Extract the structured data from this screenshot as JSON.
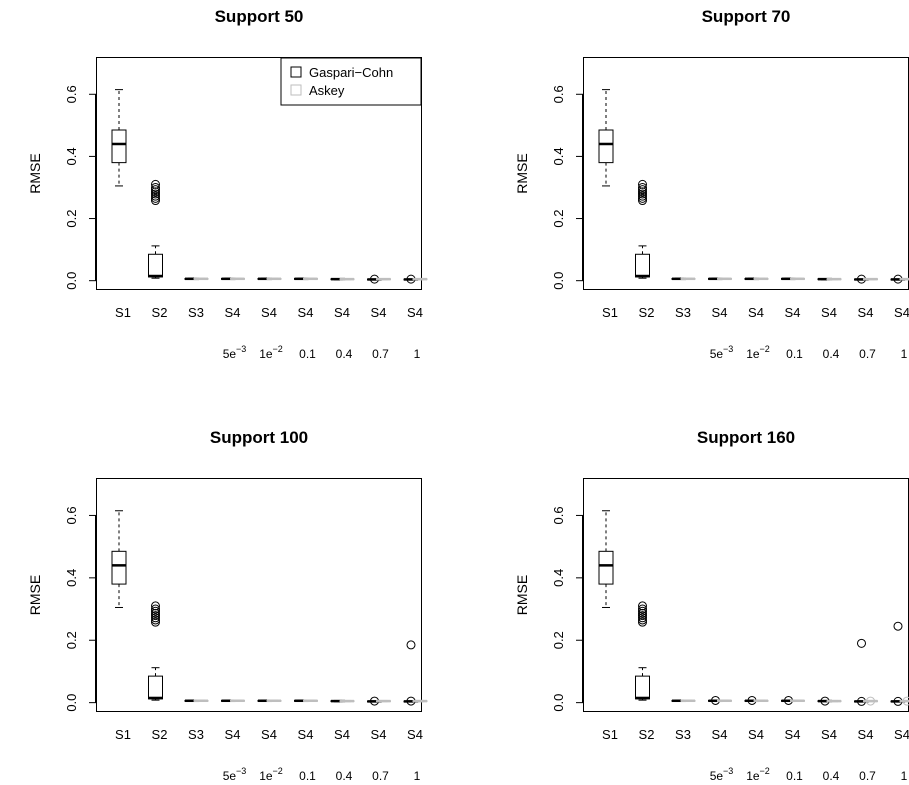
{
  "colors": {
    "gaspari_cohn": "#000000",
    "askey": "#bebebe",
    "background": "#ffffff"
  },
  "chart_data": [
    {
      "type": "boxplot",
      "title": "Support 50",
      "ylabel": "RMSE",
      "xlabel": "",
      "ylim": [
        -0.03,
        0.72
      ],
      "yticks": [
        "0.0",
        "0.2",
        "0.4",
        "0.6"
      ],
      "categories": [
        "S1",
        "S2",
        "S3",
        "S4",
        "S4",
        "S4",
        "S4",
        "S4",
        "S4"
      ],
      "parameter_labels": [
        "",
        "",
        "",
        "5e-3",
        "1e-2",
        "0.1",
        "0.4",
        "0.7",
        "1"
      ],
      "legend": {
        "position": "top-right",
        "entries": [
          "Gaspari−Cohn",
          "Askey"
        ]
      },
      "series": [
        {
          "name": "Gaspari−Cohn",
          "boxes": [
            {
              "min": 0.305,
              "q1": 0.38,
              "median": 0.44,
              "q3": 0.485,
              "max": 0.615,
              "outliers": []
            },
            {
              "min": 0.008,
              "q1": 0.012,
              "median": 0.015,
              "q3": 0.085,
              "max": 0.112,
              "outliers": [
                0.258,
                0.265,
                0.272,
                0.279,
                0.286,
                0.293,
                0.3,
                0.31
              ]
            },
            {
              "min": 0.004,
              "q1": 0.005,
              "median": 0.006,
              "q3": 0.007,
              "max": 0.008,
              "outliers": []
            },
            {
              "min": 0.004,
              "q1": 0.005,
              "median": 0.006,
              "q3": 0.007,
              "max": 0.008,
              "outliers": []
            },
            {
              "min": 0.004,
              "q1": 0.005,
              "median": 0.006,
              "q3": 0.007,
              "max": 0.008,
              "outliers": []
            },
            {
              "min": 0.004,
              "q1": 0.005,
              "median": 0.006,
              "q3": 0.007,
              "max": 0.008,
              "outliers": []
            },
            {
              "min": 0.003,
              "q1": 0.004,
              "median": 0.005,
              "q3": 0.006,
              "max": 0.007,
              "outliers": []
            },
            {
              "min": 0.002,
              "q1": 0.003,
              "median": 0.004,
              "q3": 0.005,
              "max": 0.006,
              "outliers": [
                0.005
              ]
            },
            {
              "min": 0.002,
              "q1": 0.003,
              "median": 0.004,
              "q3": 0.005,
              "max": 0.006,
              "outliers": [
                0.005
              ]
            }
          ]
        },
        {
          "name": "Askey",
          "boxes": [
            null,
            null,
            {
              "min": 0.004,
              "q1": 0.005,
              "median": 0.006,
              "q3": 0.007,
              "max": 0.008,
              "outliers": []
            },
            {
              "min": 0.004,
              "q1": 0.005,
              "median": 0.006,
              "q3": 0.007,
              "max": 0.008,
              "outliers": []
            },
            {
              "min": 0.004,
              "q1": 0.005,
              "median": 0.006,
              "q3": 0.007,
              "max": 0.008,
              "outliers": []
            },
            {
              "min": 0.004,
              "q1": 0.005,
              "median": 0.006,
              "q3": 0.007,
              "max": 0.008,
              "outliers": []
            },
            {
              "min": 0.003,
              "q1": 0.004,
              "median": 0.005,
              "q3": 0.006,
              "max": 0.007,
              "outliers": []
            },
            {
              "min": 0.003,
              "q1": 0.004,
              "median": 0.005,
              "q3": 0.006,
              "max": 0.007,
              "outliers": []
            },
            {
              "min": 0.003,
              "q1": 0.004,
              "median": 0.005,
              "q3": 0.006,
              "max": 0.007,
              "outliers": []
            }
          ]
        }
      ]
    },
    {
      "type": "boxplot",
      "title": "Support 70",
      "ylabel": "RMSE",
      "xlabel": "",
      "ylim": [
        -0.03,
        0.72
      ],
      "yticks": [
        "0.0",
        "0.2",
        "0.4",
        "0.6"
      ],
      "categories": [
        "S1",
        "S2",
        "S3",
        "S4",
        "S4",
        "S4",
        "S4",
        "S4",
        "S4"
      ],
      "parameter_labels": [
        "",
        "",
        "",
        "5e-3",
        "1e-2",
        "0.1",
        "0.4",
        "0.7",
        "1"
      ],
      "series": [
        {
          "name": "Gaspari−Cohn",
          "boxes": [
            {
              "min": 0.305,
              "q1": 0.38,
              "median": 0.44,
              "q3": 0.485,
              "max": 0.615,
              "outliers": []
            },
            {
              "min": 0.008,
              "q1": 0.012,
              "median": 0.015,
              "q3": 0.085,
              "max": 0.112,
              "outliers": [
                0.258,
                0.265,
                0.272,
                0.279,
                0.286,
                0.293,
                0.3,
                0.31
              ]
            },
            {
              "min": 0.004,
              "q1": 0.005,
              "median": 0.006,
              "q3": 0.007,
              "max": 0.008,
              "outliers": []
            },
            {
              "min": 0.004,
              "q1": 0.005,
              "median": 0.006,
              "q3": 0.007,
              "max": 0.008,
              "outliers": []
            },
            {
              "min": 0.004,
              "q1": 0.005,
              "median": 0.006,
              "q3": 0.007,
              "max": 0.008,
              "outliers": []
            },
            {
              "min": 0.004,
              "q1": 0.005,
              "median": 0.006,
              "q3": 0.007,
              "max": 0.008,
              "outliers": []
            },
            {
              "min": 0.003,
              "q1": 0.004,
              "median": 0.005,
              "q3": 0.006,
              "max": 0.007,
              "outliers": []
            },
            {
              "min": 0.002,
              "q1": 0.003,
              "median": 0.004,
              "q3": 0.005,
              "max": 0.006,
              "outliers": [
                0.005
              ]
            },
            {
              "min": 0.002,
              "q1": 0.003,
              "median": 0.004,
              "q3": 0.005,
              "max": 0.006,
              "outliers": [
                0.005
              ]
            }
          ]
        },
        {
          "name": "Askey",
          "boxes": [
            null,
            null,
            {
              "min": 0.004,
              "q1": 0.005,
              "median": 0.006,
              "q3": 0.007,
              "max": 0.008,
              "outliers": []
            },
            {
              "min": 0.004,
              "q1": 0.005,
              "median": 0.006,
              "q3": 0.007,
              "max": 0.008,
              "outliers": []
            },
            {
              "min": 0.004,
              "q1": 0.005,
              "median": 0.006,
              "q3": 0.007,
              "max": 0.008,
              "outliers": []
            },
            {
              "min": 0.004,
              "q1": 0.005,
              "median": 0.006,
              "q3": 0.007,
              "max": 0.008,
              "outliers": []
            },
            {
              "min": 0.003,
              "q1": 0.004,
              "median": 0.005,
              "q3": 0.006,
              "max": 0.007,
              "outliers": []
            },
            {
              "min": 0.003,
              "q1": 0.004,
              "median": 0.005,
              "q3": 0.006,
              "max": 0.007,
              "outliers": []
            },
            {
              "min": 0.003,
              "q1": 0.004,
              "median": 0.005,
              "q3": 0.006,
              "max": 0.007,
              "outliers": []
            }
          ]
        }
      ]
    },
    {
      "type": "boxplot",
      "title": "Support 100",
      "ylabel": "RMSE",
      "xlabel": "",
      "ylim": [
        -0.03,
        0.72
      ],
      "yticks": [
        "0.0",
        "0.2",
        "0.4",
        "0.6"
      ],
      "categories": [
        "S1",
        "S2",
        "S3",
        "S4",
        "S4",
        "S4",
        "S4",
        "S4",
        "S4"
      ],
      "parameter_labels": [
        "",
        "",
        "",
        "5e-3",
        "1e-2",
        "0.1",
        "0.4",
        "0.7",
        "1"
      ],
      "series": [
        {
          "name": "Gaspari−Cohn",
          "boxes": [
            {
              "min": 0.305,
              "q1": 0.38,
              "median": 0.44,
              "q3": 0.485,
              "max": 0.615,
              "outliers": []
            },
            {
              "min": 0.008,
              "q1": 0.012,
              "median": 0.015,
              "q3": 0.085,
              "max": 0.112,
              "outliers": [
                0.258,
                0.265,
                0.272,
                0.279,
                0.286,
                0.293,
                0.3,
                0.31
              ]
            },
            {
              "min": 0.004,
              "q1": 0.005,
              "median": 0.006,
              "q3": 0.007,
              "max": 0.008,
              "outliers": []
            },
            {
              "min": 0.004,
              "q1": 0.005,
              "median": 0.006,
              "q3": 0.007,
              "max": 0.008,
              "outliers": []
            },
            {
              "min": 0.004,
              "q1": 0.005,
              "median": 0.006,
              "q3": 0.007,
              "max": 0.008,
              "outliers": []
            },
            {
              "min": 0.004,
              "q1": 0.005,
              "median": 0.006,
              "q3": 0.007,
              "max": 0.008,
              "outliers": []
            },
            {
              "min": 0.003,
              "q1": 0.004,
              "median": 0.005,
              "q3": 0.006,
              "max": 0.007,
              "outliers": []
            },
            {
              "min": 0.002,
              "q1": 0.003,
              "median": 0.004,
              "q3": 0.005,
              "max": 0.006,
              "outliers": [
                0.005
              ]
            },
            {
              "min": 0.002,
              "q1": 0.003,
              "median": 0.004,
              "q3": 0.005,
              "max": 0.006,
              "outliers": [
                0.005,
                0.185
              ]
            }
          ]
        },
        {
          "name": "Askey",
          "boxes": [
            null,
            null,
            {
              "min": 0.004,
              "q1": 0.005,
              "median": 0.006,
              "q3": 0.007,
              "max": 0.008,
              "outliers": []
            },
            {
              "min": 0.004,
              "q1": 0.005,
              "median": 0.006,
              "q3": 0.007,
              "max": 0.008,
              "outliers": []
            },
            {
              "min": 0.004,
              "q1": 0.005,
              "median": 0.006,
              "q3": 0.007,
              "max": 0.008,
              "outliers": []
            },
            {
              "min": 0.004,
              "q1": 0.005,
              "median": 0.006,
              "q3": 0.007,
              "max": 0.008,
              "outliers": []
            },
            {
              "min": 0.003,
              "q1": 0.004,
              "median": 0.005,
              "q3": 0.006,
              "max": 0.007,
              "outliers": []
            },
            {
              "min": 0.003,
              "q1": 0.004,
              "median": 0.005,
              "q3": 0.006,
              "max": 0.007,
              "outliers": []
            },
            {
              "min": 0.003,
              "q1": 0.004,
              "median": 0.005,
              "q3": 0.006,
              "max": 0.007,
              "outliers": []
            }
          ]
        }
      ]
    },
    {
      "type": "boxplot",
      "title": "Support 160",
      "ylabel": "RMSE",
      "xlabel": "",
      "ylim": [
        -0.03,
        0.72
      ],
      "yticks": [
        "0.0",
        "0.2",
        "0.4",
        "0.6"
      ],
      "categories": [
        "S1",
        "S2",
        "S3",
        "S4",
        "S4",
        "S4",
        "S4",
        "S4",
        "S4"
      ],
      "parameter_labels": [
        "",
        "",
        "",
        "5e-3",
        "1e-2",
        "0.1",
        "0.4",
        "0.7",
        "1"
      ],
      "series": [
        {
          "name": "Gaspari−Cohn",
          "boxes": [
            {
              "min": 0.305,
              "q1": 0.38,
              "median": 0.44,
              "q3": 0.485,
              "max": 0.615,
              "outliers": []
            },
            {
              "min": 0.008,
              "q1": 0.012,
              "median": 0.015,
              "q3": 0.085,
              "max": 0.112,
              "outliers": [
                0.258,
                0.265,
                0.272,
                0.279,
                0.286,
                0.293,
                0.3,
                0.31
              ]
            },
            {
              "min": 0.004,
              "q1": 0.005,
              "median": 0.006,
              "q3": 0.007,
              "max": 0.008,
              "outliers": []
            },
            {
              "min": 0.004,
              "q1": 0.005,
              "median": 0.006,
              "q3": 0.007,
              "max": 0.008,
              "outliers": [
                0.007
              ]
            },
            {
              "min": 0.004,
              "q1": 0.005,
              "median": 0.006,
              "q3": 0.007,
              "max": 0.008,
              "outliers": [
                0.007
              ]
            },
            {
              "min": 0.004,
              "q1": 0.005,
              "median": 0.006,
              "q3": 0.007,
              "max": 0.008,
              "outliers": [
                0.007
              ]
            },
            {
              "min": 0.003,
              "q1": 0.004,
              "median": 0.005,
              "q3": 0.006,
              "max": 0.007,
              "outliers": [
                0.005
              ]
            },
            {
              "min": 0.002,
              "q1": 0.003,
              "median": 0.004,
              "q3": 0.005,
              "max": 0.006,
              "outliers": [
                0.004,
                0.19
              ]
            },
            {
              "min": 0.002,
              "q1": 0.003,
              "median": 0.004,
              "q3": 0.005,
              "max": 0.006,
              "outliers": [
                0.004,
                0.245
              ]
            }
          ]
        },
        {
          "name": "Askey",
          "boxes": [
            null,
            null,
            {
              "min": 0.004,
              "q1": 0.005,
              "median": 0.006,
              "q3": 0.007,
              "max": 0.008,
              "outliers": []
            },
            {
              "min": 0.004,
              "q1": 0.005,
              "median": 0.006,
              "q3": 0.007,
              "max": 0.008,
              "outliers": []
            },
            {
              "min": 0.004,
              "q1": 0.005,
              "median": 0.006,
              "q3": 0.007,
              "max": 0.008,
              "outliers": []
            },
            {
              "min": 0.004,
              "q1": 0.005,
              "median": 0.006,
              "q3": 0.007,
              "max": 0.008,
              "outliers": []
            },
            {
              "min": 0.003,
              "q1": 0.004,
              "median": 0.005,
              "q3": 0.006,
              "max": 0.007,
              "outliers": []
            },
            {
              "min": 0.003,
              "q1": 0.004,
              "median": 0.005,
              "q3": 0.006,
              "max": 0.007,
              "outliers": [
                0.005
              ]
            },
            {
              "min": 0.003,
              "q1": 0.004,
              "median": 0.005,
              "q3": 0.006,
              "max": 0.007,
              "outliers": [
                0.005
              ]
            }
          ]
        }
      ]
    }
  ]
}
